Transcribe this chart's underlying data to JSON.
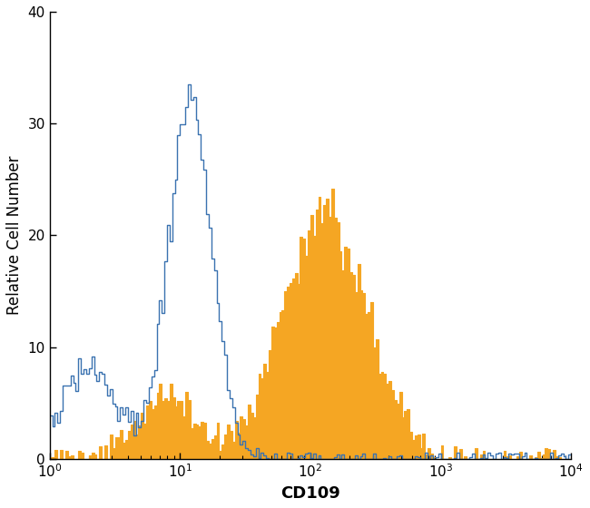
{
  "title": "",
  "xlabel": "CD109",
  "ylabel": "Relative Cell Number",
  "xlim": [
    1.0,
    10000.0
  ],
  "ylim": [
    0,
    40
  ],
  "yticks": [
    0,
    10,
    20,
    30,
    40
  ],
  "blue_color": "#3a72b0",
  "orange_color": "#f5a623",
  "blue_linewidth": 1.0,
  "orange_linewidth": 0.8,
  "xlabel_fontsize": 13,
  "ylabel_fontsize": 12,
  "tick_fontsize": 11,
  "fig_width": 6.5,
  "fig_height": 5.6,
  "dpi": 100,
  "n_bins": 200,
  "blue_peak": 33,
  "orange_peak": 24
}
